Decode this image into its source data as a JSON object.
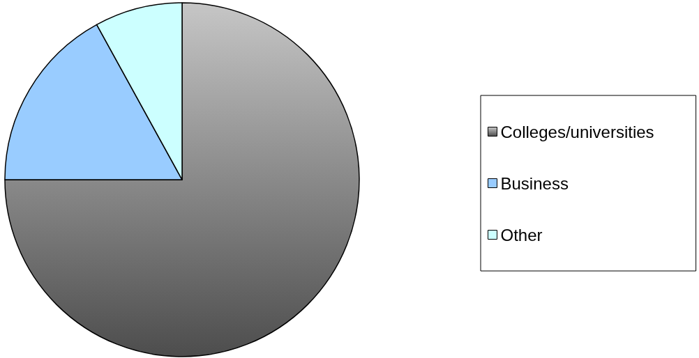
{
  "chart_data": {
    "type": "pie",
    "categories": [
      "Colleges/universities",
      "Business",
      "Other"
    ],
    "values": [
      75,
      17,
      8
    ],
    "colors": [
      "#8c8c8c",
      "#99ccff",
      "#ccffff"
    ],
    "legend": "right"
  }
}
